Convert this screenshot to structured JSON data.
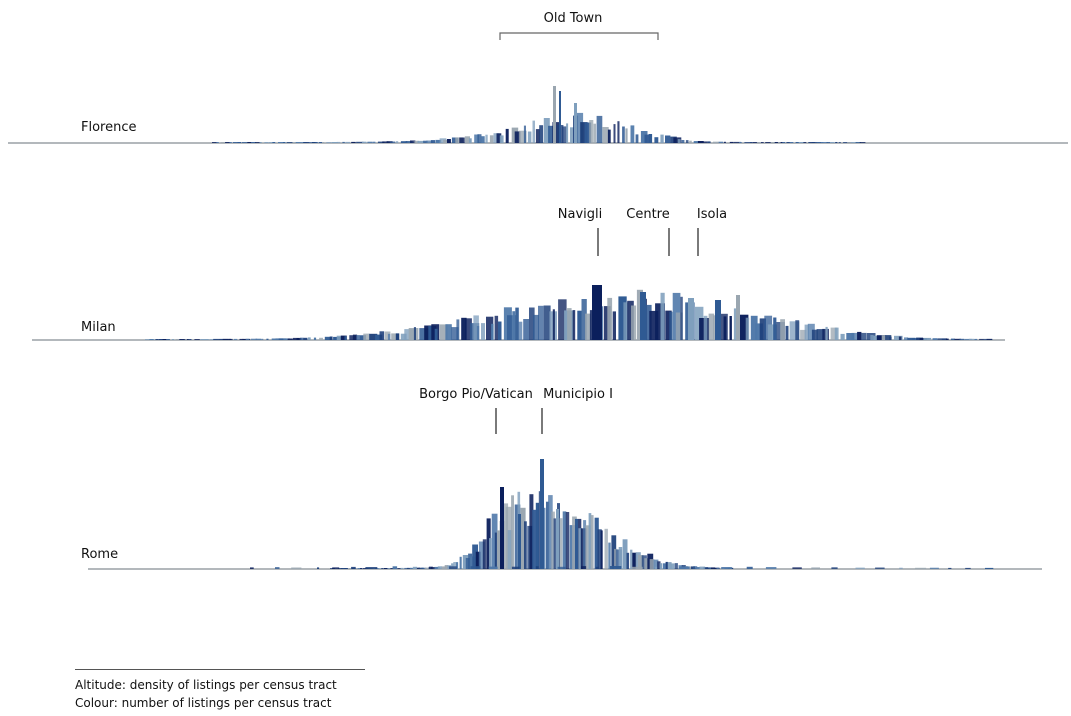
{
  "cities": [
    {
      "name": "Florence"
    },
    {
      "name": "Milan"
    },
    {
      "name": "Rome"
    }
  ],
  "annotations": {
    "florence": [
      {
        "label": "Old Town"
      }
    ],
    "milan": [
      {
        "label": "Navigli"
      },
      {
        "label": "Centre"
      },
      {
        "label": "Isola"
      }
    ],
    "rome": [
      {
        "label": "Borgo Pio/Vatican"
      },
      {
        "label": "Municipio I"
      }
    ]
  },
  "legend": {
    "altitude": "Altitude: density of listings per census tract",
    "colour": "Colour: number of listings per census tract"
  },
  "colors": {
    "dark": "#0b1f5c",
    "mid": "#2f5a93",
    "light": "#7f9fbd",
    "grey": "#9aa6b0",
    "baseline": "#8a8f94"
  }
}
